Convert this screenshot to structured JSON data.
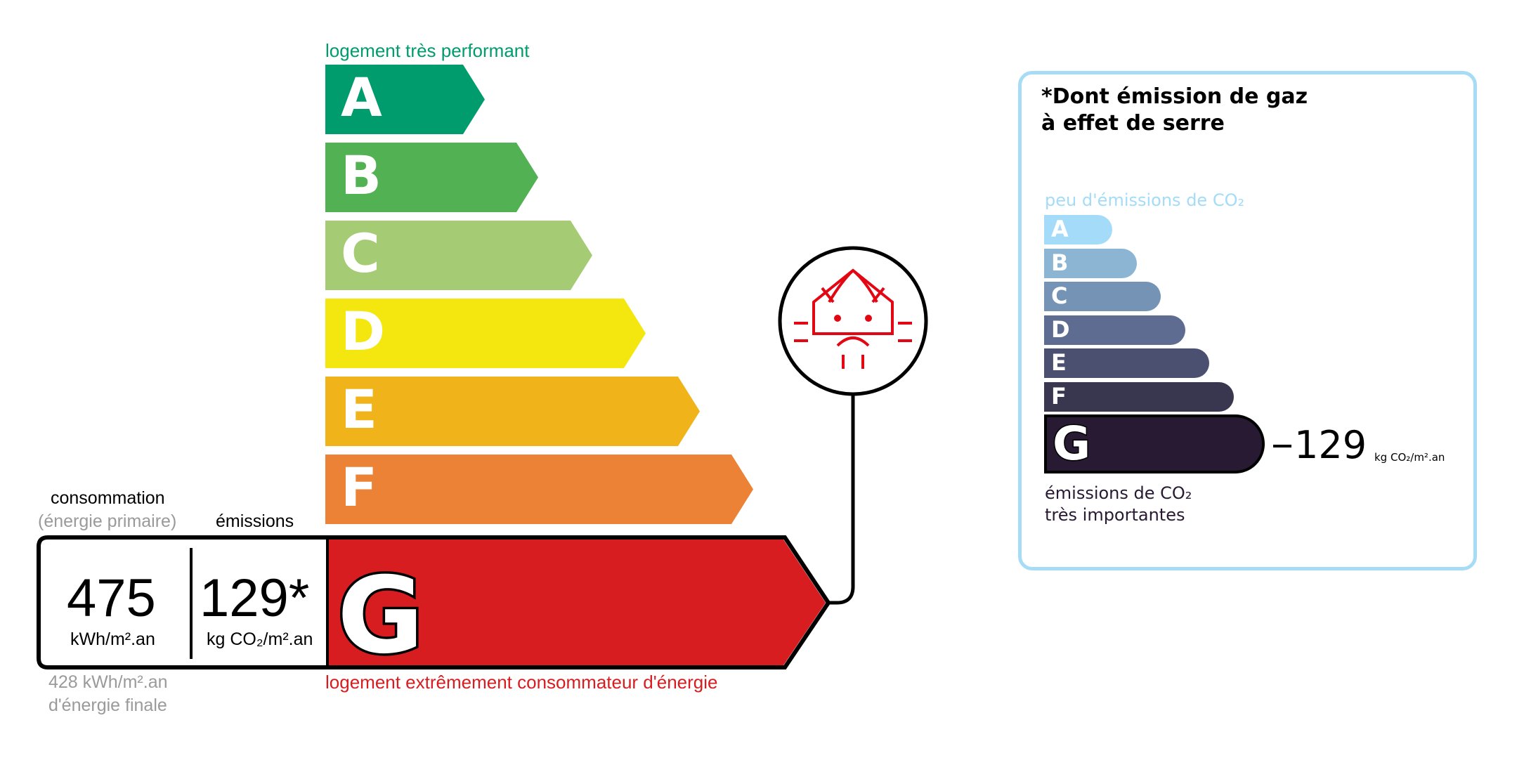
{
  "energy_scale": {
    "top_label": "logement très performant",
    "bottom_label": "logement extrêmement consommateur d'énergie",
    "classes": [
      {
        "letter": "A",
        "color": "#009c6d"
      },
      {
        "letter": "B",
        "color": "#52b153"
      },
      {
        "letter": "C",
        "color": "#a5cc74"
      },
      {
        "letter": "D",
        "color": "#f4e70f"
      },
      {
        "letter": "E",
        "color": "#f0b41a"
      },
      {
        "letter": "F",
        "color": "#eb8235"
      },
      {
        "letter": "G",
        "color": "#d71d20"
      }
    ],
    "current_class": "G",
    "consumption_label": "consommation",
    "consumption_sublabel": "(énergie primaire)",
    "emissions_label": "émissions",
    "consumption_value": "475",
    "consumption_unit": "kWh/m².an",
    "emissions_value": "129*",
    "emissions_unit": "kg CO₂/m².an",
    "final_energy_line1": "428 kWh/m².an",
    "final_energy_line2": "d'énergie finale",
    "icon": "house-heat-loss-sad-icon"
  },
  "ges_panel": {
    "title_line1": "*Dont émission de gaz",
    "title_line2": "à effet de serre",
    "top_label": "peu d'émissions de CO₂",
    "bottom_label_line1": "émissions de CO₂",
    "bottom_label_line2": "très importantes",
    "classes": [
      {
        "letter": "A",
        "color": "#a4dbf8"
      },
      {
        "letter": "B",
        "color": "#8cb4d3"
      },
      {
        "letter": "C",
        "color": "#7593b4"
      },
      {
        "letter": "D",
        "color": "#5e6c91"
      },
      {
        "letter": "E",
        "color": "#4b4f70"
      },
      {
        "letter": "F",
        "color": "#39374f"
      },
      {
        "letter": "G",
        "color": "#281a32"
      }
    ],
    "current_class": "G",
    "value": "129",
    "unit": "kg CO₂/m².an",
    "border_color": "#a6dcf5"
  }
}
